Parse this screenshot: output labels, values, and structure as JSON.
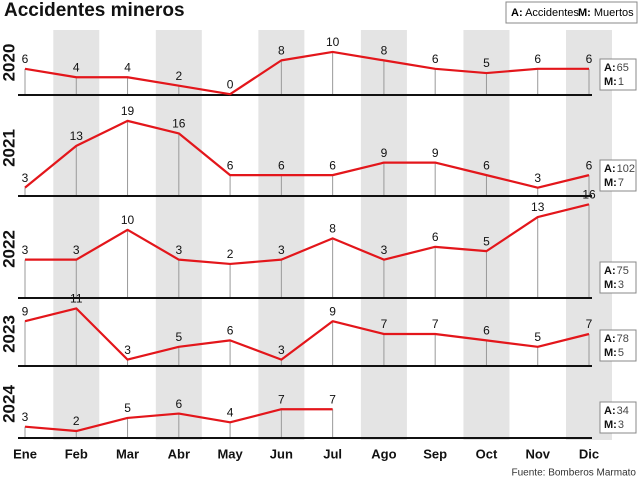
{
  "chart_data": {
    "type": "line",
    "title": "Accidentes mineros",
    "legend": [
      {
        "key": "A:",
        "label": "Accidentes"
      },
      {
        "key": "M:",
        "label": "Muertos"
      }
    ],
    "categories": [
      "Ene",
      "Feb",
      "Mar",
      "Abr",
      "May",
      "Jun",
      "Jul",
      "Ago",
      "Sep",
      "Oct",
      "Nov",
      "Dic"
    ],
    "color": "#e3161b",
    "source": "Fuente: Bomberos Marmato",
    "series": [
      {
        "name": "2020",
        "values": [
          6,
          4,
          4,
          2,
          0,
          8,
          10,
          8,
          6,
          5,
          6,
          6
        ],
        "accidents": 65,
        "deaths": 1,
        "ylim": [
          -0.2,
          15.2
        ]
      },
      {
        "name": "2021",
        "values": [
          3,
          13,
          19,
          16,
          6,
          6,
          6,
          9,
          9,
          6,
          3,
          6
        ],
        "accidents": 102,
        "deaths": 7,
        "ylim": [
          1,
          24
        ]
      },
      {
        "name": "2022",
        "values": [
          3,
          3,
          10,
          3,
          2,
          3,
          8,
          3,
          6,
          5,
          13,
          16
        ],
        "accidents": 75,
        "deaths": 3,
        "ylim": [
          -6,
          17
        ]
      },
      {
        "name": "2023",
        "values": [
          9,
          11,
          3,
          5,
          6,
          3,
          9,
          7,
          7,
          6,
          5,
          7
        ],
        "accidents": 78,
        "deaths": 5,
        "ylim": [
          2,
          12
        ]
      },
      {
        "name": "2024",
        "values": [
          3,
          2,
          5,
          6,
          4,
          7,
          7,
          null,
          null,
          null,
          null,
          null
        ],
        "accidents": 34,
        "deaths": 3,
        "ylim": [
          0.4,
          16
        ]
      }
    ]
  }
}
